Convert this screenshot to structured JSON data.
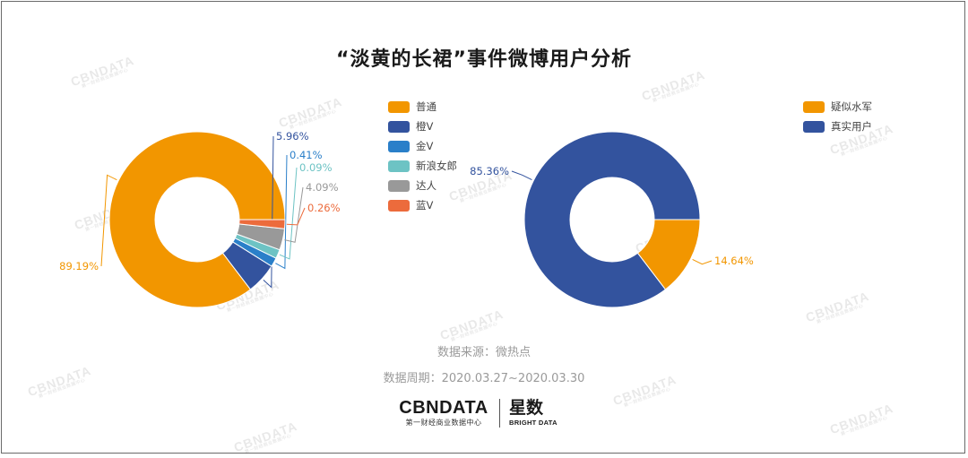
{
  "title": "“淡黄的长裙”事件微博用户分析",
  "watermark": {
    "main": "CBNDATA",
    "sub": "第一财经商业数据中心"
  },
  "chart_data": [
    {
      "type": "pie",
      "slices": [
        {
          "label": "普通",
          "value": 89.19,
          "value_label": "89.19%",
          "color": "#f29600"
        },
        {
          "label": "橙V",
          "value": 5.96,
          "value_label": "5.96%",
          "color": "#33539e"
        },
        {
          "label": "金V",
          "value": 0.41,
          "value_label": "0.41%",
          "color": "#2a7fc9"
        },
        {
          "label": "新浪女郎",
          "value": 0.09,
          "value_label": "0.09%",
          "color": "#6dc3c4"
        },
        {
          "label": "达人",
          "value": 4.09,
          "value_label": "4.09%",
          "color": "#999999"
        },
        {
          "label": "蓝V",
          "value": 0.26,
          "value_label": "0.26%",
          "color": "#ec6b3c"
        }
      ],
      "legend_position": "right"
    },
    {
      "type": "pie",
      "slices": [
        {
          "label": "疑似水军",
          "value": 14.64,
          "value_label": "14.64%",
          "color": "#f29600"
        },
        {
          "label": "真实用户",
          "value": 85.36,
          "value_label": "85.36%",
          "color": "#33539e"
        }
      ],
      "legend_position": "top-right"
    }
  ],
  "footer": {
    "source": "数据来源：微热点",
    "period": "数据周期：2020.03.27~2020.03.30",
    "logo_main": "CBNDATA",
    "logo_sub": "第一财经商业数据中心",
    "brand_main": "星数",
    "brand_sub": "BRIGHT DATA"
  }
}
